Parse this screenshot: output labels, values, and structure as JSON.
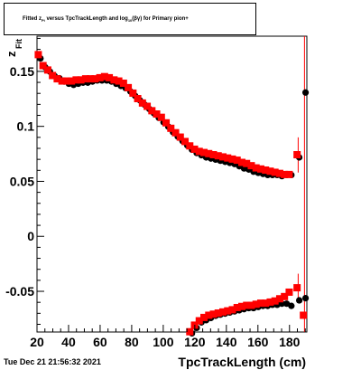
{
  "chart_data": {
    "type": "scatter",
    "title_parts": {
      "t1": "Fitted  z",
      "t1_sub": "Pi",
      "t2": " versus TpcTrackLength and log",
      "t2_sub": "10",
      "t3": "(βγ) for Primary pion+"
    },
    "xlabel": "TpcTrackLength (cm)",
    "ylabel": "z",
    "ylabel_sub": "Fit",
    "xlim": [
      20,
      191
    ],
    "ylim": [
      -0.087,
      0.182
    ],
    "x_ticks": [
      20,
      40,
      60,
      80,
      100,
      120,
      140,
      160,
      180
    ],
    "y_ticks": [
      -0.05,
      0,
      0.05,
      0.1,
      0.15
    ],
    "y_tick_labels": [
      "-0.05",
      "0",
      "0.05",
      "0.1",
      "0.15"
    ],
    "grid": false,
    "series": [
      {
        "color": "#000000",
        "marker": "circle",
        "points": [
          [
            21.5,
            0.163
          ],
          [
            24.5,
            0.155
          ],
          [
            27.5,
            0.151
          ],
          [
            30.5,
            0.147
          ],
          [
            33.5,
            0.145
          ],
          [
            36.5,
            0.142
          ],
          [
            39.5,
            0.14
          ],
          [
            42.5,
            0.139
          ],
          [
            45.5,
            0.14
          ],
          [
            48.5,
            0.141
          ],
          [
            51.5,
            0.141
          ],
          [
            54.5,
            0.142
          ],
          [
            57.5,
            0.143
          ],
          [
            60.5,
            0.143
          ],
          [
            63.5,
            0.143
          ],
          [
            66.5,
            0.142
          ],
          [
            69.5,
            0.14
          ],
          [
            72.5,
            0.138
          ],
          [
            75.5,
            0.136
          ],
          [
            78.5,
            0.133
          ],
          [
            81.5,
            0.129
          ],
          [
            84.5,
            0.125
          ],
          [
            87.5,
            0.121
          ],
          [
            90.5,
            0.117
          ],
          [
            93.5,
            0.113
          ],
          [
            96.5,
            0.109
          ],
          [
            99.5,
            0.105
          ],
          [
            102.5,
            0.101
          ],
          [
            105.5,
            0.096
          ],
          [
            108.5,
            0.092
          ],
          [
            111.5,
            0.088
          ],
          [
            114.5,
            0.084
          ],
          [
            117.5,
            0.08
          ],
          [
            120.5,
            0.077
          ],
          [
            123.5,
            0.075
          ],
          [
            126.5,
            0.073
          ],
          [
            129.5,
            0.072
          ],
          [
            132.5,
            0.071
          ],
          [
            135.5,
            0.07
          ],
          [
            138.5,
            0.069
          ],
          [
            141.5,
            0.068
          ],
          [
            144.5,
            0.067
          ],
          [
            147.5,
            0.065
          ],
          [
            150.5,
            0.063
          ],
          [
            153.5,
            0.062
          ],
          [
            156.5,
            0.06
          ],
          [
            159.5,
            0.059
          ],
          [
            162.5,
            0.058
          ],
          [
            165.5,
            0.057
          ],
          [
            168.5,
            0.057
          ],
          [
            171.5,
            0.057
          ],
          [
            174.5,
            0.056
          ],
          [
            177.5,
            0.057
          ],
          [
            180.5,
            0.057
          ],
          [
            185.5,
            0.073
          ],
          [
            189.5,
            0.132
          ],
          [
            117.5,
            -0.087
          ],
          [
            120.5,
            -0.082
          ],
          [
            123.5,
            -0.077
          ],
          [
            126.5,
            -0.075
          ],
          [
            129.5,
            -0.073
          ],
          [
            132.5,
            -0.071
          ],
          [
            135.5,
            -0.07
          ],
          [
            138.5,
            -0.069
          ],
          [
            141.5,
            -0.068
          ],
          [
            144.5,
            -0.067
          ],
          [
            147.5,
            -0.066
          ],
          [
            150.5,
            -0.065
          ],
          [
            153.5,
            -0.064
          ],
          [
            156.5,
            -0.064
          ],
          [
            159.5,
            -0.063
          ],
          [
            162.5,
            -0.062
          ],
          [
            165.5,
            -0.062
          ],
          [
            168.5,
            -0.061
          ],
          [
            171.5,
            -0.061
          ],
          [
            174.5,
            -0.06
          ],
          [
            177.5,
            -0.06
          ],
          [
            180.5,
            -0.062
          ],
          [
            185.5,
            -0.057
          ],
          [
            189.5,
            -0.055
          ]
        ]
      },
      {
        "color": "#ff0000",
        "marker": "square",
        "points": [
          [
            21.5,
            0.164
          ],
          [
            24.5,
            0.154
          ],
          [
            27.5,
            0.15
          ],
          [
            30.5,
            0.145
          ],
          [
            33.5,
            0.142
          ],
          [
            36.5,
            0.14
          ],
          [
            39.5,
            0.14
          ],
          [
            42.5,
            0.14
          ],
          [
            45.5,
            0.141
          ],
          [
            48.5,
            0.141
          ],
          [
            51.5,
            0.142
          ],
          [
            54.5,
            0.142
          ],
          [
            57.5,
            0.142
          ],
          [
            60.5,
            0.143
          ],
          [
            63.5,
            0.144
          ],
          [
            66.5,
            0.143
          ],
          [
            69.5,
            0.141
          ],
          [
            72.5,
            0.14
          ],
          [
            75.5,
            0.138
          ],
          [
            78.5,
            0.134
          ],
          [
            81.5,
            0.129
          ],
          [
            84.5,
            0.124
          ],
          [
            87.5,
            0.12
          ],
          [
            90.5,
            0.117
          ],
          [
            93.5,
            0.113
          ],
          [
            96.5,
            0.11
          ],
          [
            99.5,
            0.107
          ],
          [
            102.5,
            0.102
          ],
          [
            105.5,
            0.097
          ],
          [
            108.5,
            0.093
          ],
          [
            111.5,
            0.089
          ],
          [
            114.5,
            0.085
          ],
          [
            117.5,
            0.081
          ],
          [
            120.5,
            0.078
          ],
          [
            123.5,
            0.076
          ],
          [
            126.5,
            0.075
          ],
          [
            129.5,
            0.074
          ],
          [
            132.5,
            0.073
          ],
          [
            135.5,
            0.072
          ],
          [
            138.5,
            0.071
          ],
          [
            141.5,
            0.07
          ],
          [
            144.5,
            0.069
          ],
          [
            147.5,
            0.068
          ],
          [
            150.5,
            0.066
          ],
          [
            153.5,
            0.065
          ],
          [
            156.5,
            0.063
          ],
          [
            159.5,
            0.061
          ],
          [
            162.5,
            0.06
          ],
          [
            165.5,
            0.059
          ],
          [
            168.5,
            0.058
          ],
          [
            171.5,
            0.057
          ],
          [
            174.5,
            0.056
          ],
          [
            177.5,
            0.055
          ],
          [
            180.5,
            0.055
          ],
          [
            185.5,
            0.073
          ],
          [
            117.5,
            -0.088
          ],
          [
            120.5,
            -0.082
          ],
          [
            123.5,
            -0.078
          ],
          [
            126.5,
            -0.075
          ],
          [
            129.5,
            -0.073
          ],
          [
            132.5,
            -0.072
          ],
          [
            135.5,
            -0.071
          ],
          [
            138.5,
            -0.07
          ],
          [
            141.5,
            -0.069
          ],
          [
            144.5,
            -0.068
          ],
          [
            147.5,
            -0.066
          ],
          [
            150.5,
            -0.065
          ],
          [
            153.5,
            -0.064
          ],
          [
            156.5,
            -0.064
          ],
          [
            159.5,
            -0.063
          ],
          [
            162.5,
            -0.062
          ],
          [
            165.5,
            -0.062
          ],
          [
            168.5,
            -0.061
          ],
          [
            171.5,
            -0.06
          ],
          [
            174.5,
            -0.058
          ],
          [
            177.5,
            -0.056
          ],
          [
            180.5,
            -0.052
          ],
          [
            185.5,
            -0.048
          ],
          [
            189.5,
            -0.073
          ]
        ]
      }
    ]
  },
  "timestamp": "Tue Dec 21 21:56:32 2021"
}
